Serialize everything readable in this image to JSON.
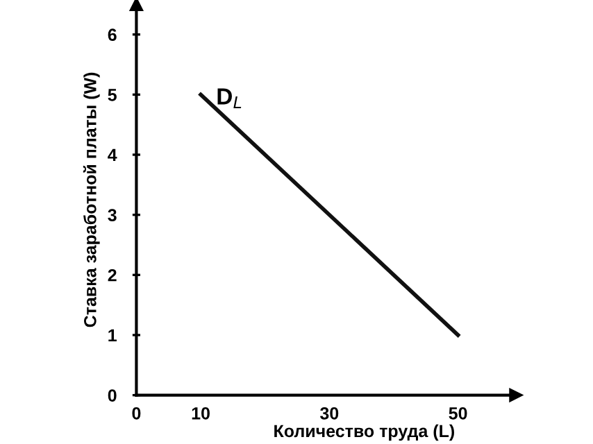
{
  "chart_data": {
    "type": "line",
    "xlabel": "Количество труда (L)",
    "ylabel": "Ставка заработной платы (W)",
    "xlim": [
      0,
      59
    ],
    "ylim": [
      0,
      6.5
    ],
    "xticks": [
      0,
      10,
      30,
      50
    ],
    "yticks": [
      0,
      1,
      2,
      3,
      4,
      5,
      6
    ],
    "grid": false,
    "legend": false,
    "marker": "none",
    "line_style": "solid",
    "series": [
      {
        "name": "D$_{L}$",
        "color": "#111111",
        "x": [
          10,
          50
        ],
        "values": [
          5,
          1
        ]
      }
    ]
  }
}
